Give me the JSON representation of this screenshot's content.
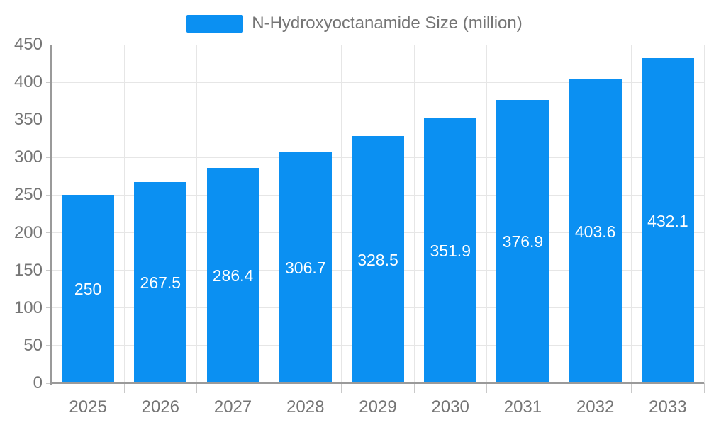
{
  "legend": {
    "label": "N-Hydroxyoctanamide Size (million)",
    "swatch_color": "#0b90f2"
  },
  "chart_data": {
    "type": "bar",
    "title": "N-Hydroxyoctanamide Size (million)",
    "categories": [
      "2025",
      "2026",
      "2027",
      "2028",
      "2029",
      "2030",
      "2031",
      "2032",
      "2033"
    ],
    "values": [
      250,
      267.5,
      286.4,
      306.7,
      328.5,
      351.9,
      376.9,
      403.6,
      432.1
    ],
    "value_labels": [
      "250",
      "267.5",
      "286.4",
      "306.7",
      "328.5",
      "351.9",
      "376.9",
      "403.6",
      "432.1"
    ],
    "xlabel": "",
    "ylabel": "",
    "ylim": [
      0,
      450
    ],
    "ytick_step": 50,
    "yticks": [
      0,
      50,
      100,
      150,
      200,
      250,
      300,
      350,
      400,
      450
    ],
    "grid": true,
    "legend_position": "top-center",
    "colors": {
      "bar": "#0b90f2",
      "bar_value_text": "#ffffff",
      "axis_text": "#757575",
      "axis_line": "#9a9a9a",
      "grid_line": "#e6e6e6",
      "tick": "#c9c9c9"
    }
  }
}
